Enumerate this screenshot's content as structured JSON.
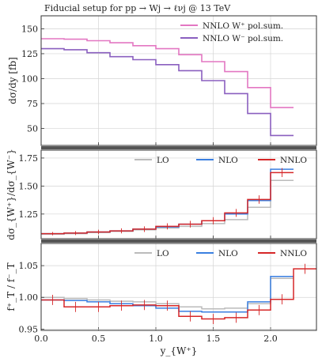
{
  "chart_data": {
    "type": "line",
    "x_label": "y_{W⁺}",
    "x_ticks": [
      "0.0",
      "0.5",
      "1.0",
      "1.5",
      "2.0"
    ],
    "x_range": [
      0,
      2.4
    ],
    "bin_edges": [
      0,
      0.2,
      0.4,
      0.6,
      0.8,
      1.0,
      1.2,
      1.4,
      1.6,
      1.8,
      2.0,
      2.2,
      2.4
    ],
    "panels": [
      {
        "id": "top",
        "title": "Fiducial setup for pp → Wj → ℓνj @ 13 TeV",
        "ylabel": "dσ/dy [fb]",
        "ylim": [
          33,
          163
        ],
        "y_ticks": [
          "50",
          "75",
          "100",
          "125",
          "150"
        ],
        "y_tick_values": [
          50,
          75,
          100,
          125,
          150
        ],
        "legend_position": "top-right",
        "series": [
          {
            "name": "NNLO W⁺ pol.sum.",
            "color": "#e377c2",
            "values": [
              140,
              139.5,
              138,
              136,
              133,
              130,
              124,
              117,
              107,
              91,
              71,
              null
            ]
          },
          {
            "name": "NNLO W⁻ pol.sum.",
            "color": "#8a5fbf",
            "values": [
              130,
              129,
              126,
              122,
              119,
              114,
              108,
              98,
              85,
              65,
              43,
              null
            ]
          }
        ]
      },
      {
        "id": "middle",
        "ylabel": "dσ_{W⁺}/dσ_{W⁻}",
        "ylim": [
          1.03,
          1.82
        ],
        "y_ticks": [
          "1.25",
          "1.50",
          "1.75"
        ],
        "y_tick_values": [
          1.25,
          1.5,
          1.75
        ],
        "legend_position": "top",
        "series": [
          {
            "name": "LO",
            "color": "#bbbbbb",
            "values": [
              1.07,
              1.075,
              1.085,
              1.095,
              1.11,
              1.125,
              1.14,
              1.165,
              1.2,
              1.31,
              1.55,
              null
            ]
          },
          {
            "name": "NLO",
            "color": "#3a7fe0",
            "values": [
              1.075,
              1.08,
              1.09,
              1.1,
              1.115,
              1.135,
              1.16,
              1.19,
              1.25,
              1.37,
              1.65,
              null
            ]
          },
          {
            "name": "NNLO",
            "color": "#d62728",
            "values": [
              1.075,
              1.08,
              1.09,
              1.1,
              1.115,
              1.14,
              1.16,
              1.19,
              1.26,
              1.38,
              1.62,
              null
            ]
          }
        ]
      },
      {
        "id": "bottom",
        "ylabel": "f⁺_T / f⁻_T",
        "ylim": [
          0.948,
          1.085
        ],
        "y_ticks": [
          "0.95",
          "1.00",
          "1.05"
        ],
        "y_tick_values": [
          0.95,
          1.0,
          1.05
        ],
        "legend_position": "top",
        "series": [
          {
            "name": "LO",
            "color": "#bbbbbb",
            "values": [
              1.0,
              0.998,
              0.996,
              0.994,
              0.993,
              0.99,
              0.985,
              0.982,
              0.983,
              0.99,
              1.03,
              null
            ]
          },
          {
            "name": "NLO",
            "color": "#3a7fe0",
            "values": [
              0.996,
              0.995,
              0.993,
              0.99,
              0.987,
              0.983,
              0.978,
              0.977,
              0.977,
              0.993,
              1.033,
              null
            ]
          },
          {
            "name": "NNLO",
            "color": "#d62728",
            "values": [
              0.996,
              0.985,
              0.985,
              0.987,
              0.988,
              0.987,
              0.97,
              0.966,
              0.968,
              0.98,
              0.997,
              1.045
            ]
          }
        ]
      }
    ]
  }
}
